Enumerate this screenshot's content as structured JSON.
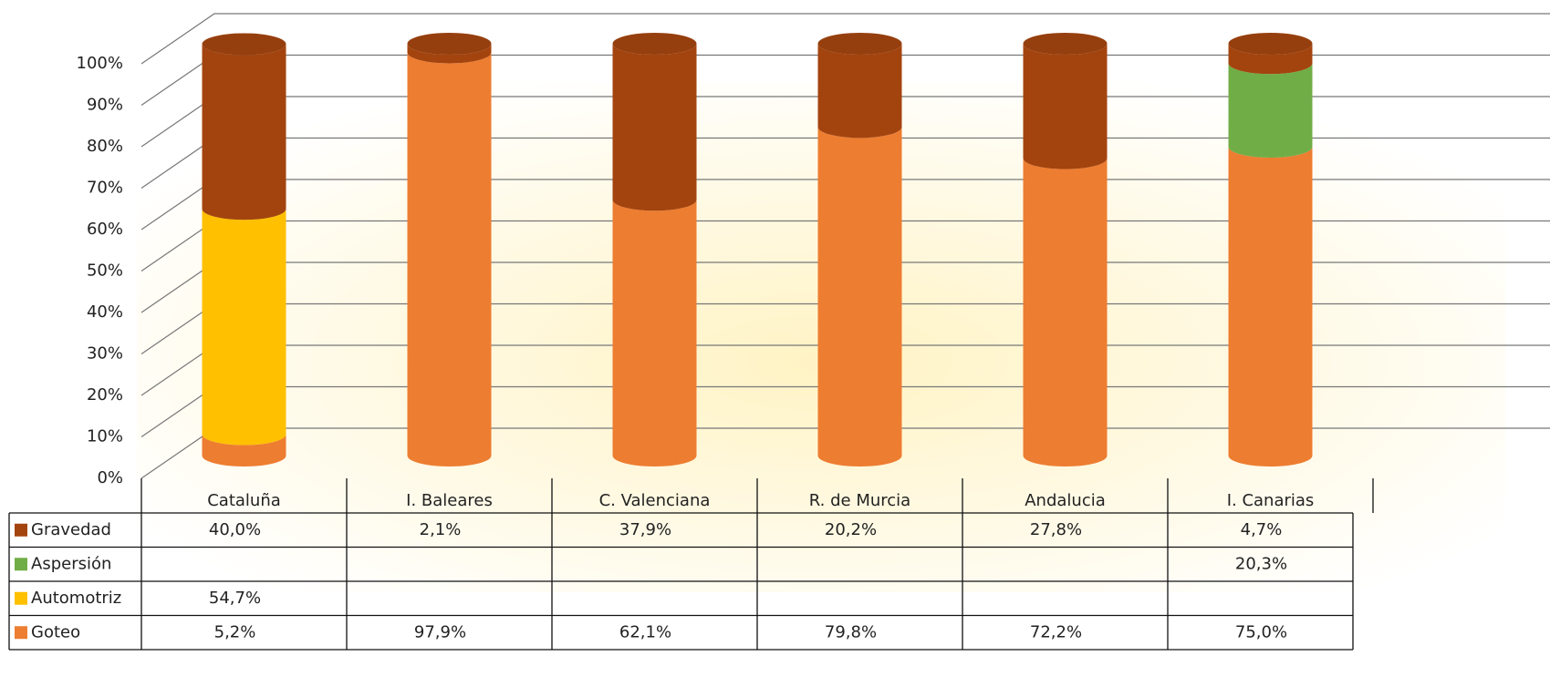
{
  "chart_data": {
    "type": "stacked-cylinder",
    "categories": [
      "Cataluña",
      "I. Baleares",
      "C. Valenciana",
      "R. de Murcia",
      "Andalucia",
      "I. Canarias"
    ],
    "series": [
      {
        "name": "Gravedad",
        "color": "#a3440f",
        "values": [
          40.0,
          2.1,
          37.9,
          20.2,
          27.8,
          4.7
        ],
        "value_labels": [
          "40,0%",
          "2,1%",
          "37,9%",
          "20,2%",
          "27,8%",
          "4,7%"
        ]
      },
      {
        "name": "Aspersión",
        "color": "#70ad47",
        "values": [
          null,
          null,
          null,
          null,
          null,
          20.3
        ],
        "value_labels": [
          null,
          null,
          null,
          null,
          null,
          "20,3%"
        ]
      },
      {
        "name": "Automotriz",
        "color": "#ffc000",
        "values": [
          54.7,
          null,
          null,
          null,
          null,
          null
        ],
        "value_labels": [
          "54,7%",
          null,
          null,
          null,
          null,
          null
        ]
      },
      {
        "name": "Goteo",
        "color": "#ed7d31",
        "values": [
          5.2,
          97.9,
          62.1,
          79.8,
          72.2,
          75.0
        ],
        "value_labels": [
          "5,2%",
          "97,9%",
          "62,1%",
          "79,8%",
          "72,2%",
          "75,0%"
        ]
      }
    ],
    "ylim": [
      0,
      100
    ],
    "yticks": [
      {
        "value": 0,
        "label": "0%"
      },
      {
        "value": 10,
        "label": "10%"
      },
      {
        "value": 20,
        "label": "20%"
      },
      {
        "value": 30,
        "label": "30%"
      },
      {
        "value": 40,
        "label": "40%"
      },
      {
        "value": 50,
        "label": "50%"
      },
      {
        "value": 60,
        "label": "60%"
      },
      {
        "value": 70,
        "label": "70%"
      },
      {
        "value": 80,
        "label": "80%"
      },
      {
        "value": 90,
        "label": "90%"
      },
      {
        "value": 100,
        "label": "100%"
      }
    ],
    "grid": true
  }
}
